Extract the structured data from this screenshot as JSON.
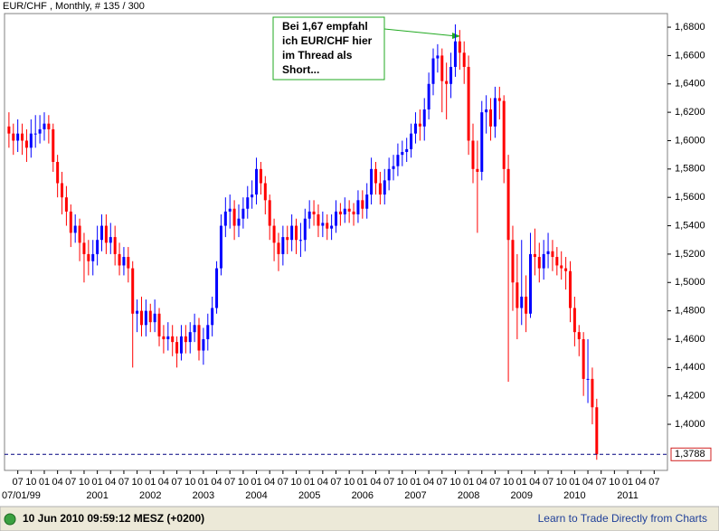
{
  "header": "EUR/CHF , Monthly, # 135 / 300",
  "status_time": "10 Jun 2010 09:59:12  MESZ (+0200)",
  "status_link": "Learn to Trade Directly from Charts",
  "chart_data": {
    "type": "candlestick",
    "annotation": [
      "Bei 1,67 empfahl",
      "ich EUR/CHF hier",
      "im Thread als",
      "Short..."
    ],
    "up_color": "#0000ff",
    "down_color": "#ff0000",
    "xlim": [
      "1999-04",
      "2011-10"
    ],
    "ylim": [
      1.3675,
      1.6896
    ],
    "yticks": [
      {
        "value": 1.4,
        "label": "1,4000"
      },
      {
        "value": 1.42,
        "label": "1,4200"
      },
      {
        "value": 1.44,
        "label": "1,4400"
      },
      {
        "value": 1.46,
        "label": "1,4600"
      },
      {
        "value": 1.48,
        "label": "1,4800"
      },
      {
        "value": 1.5,
        "label": "1,5000"
      },
      {
        "value": 1.52,
        "label": "1,5200"
      },
      {
        "value": 1.54,
        "label": "1,5400"
      },
      {
        "value": 1.56,
        "label": "1,5600"
      },
      {
        "value": 1.58,
        "label": "1,5800"
      },
      {
        "value": 1.6,
        "label": "1,6000"
      },
      {
        "value": 1.62,
        "label": "1,6200"
      },
      {
        "value": 1.64,
        "label": "1,6400"
      },
      {
        "value": 1.66,
        "label": "1,6600"
      },
      {
        "value": 1.68,
        "label": "1,6800"
      }
    ],
    "current_price": {
      "value": 1.3788,
      "label": "1,3788"
    },
    "start_label": "07/01/99",
    "xticks": [
      {
        "value": "1999-07",
        "label": "07"
      },
      {
        "value": "1999-10",
        "label": "10"
      },
      {
        "value": "2000-01",
        "label": "01"
      },
      {
        "value": "2000-04",
        "label": "04"
      },
      {
        "value": "2000-07",
        "label": "07"
      },
      {
        "value": "2000-10",
        "label": "10"
      },
      {
        "value": "2001-01",
        "label": "01"
      },
      {
        "value": "2001-04",
        "label": "04"
      },
      {
        "value": "2001-07",
        "label": "07"
      },
      {
        "value": "2001-10",
        "label": "10"
      },
      {
        "value": "2002-01",
        "label": "01"
      },
      {
        "value": "2002-04",
        "label": "04"
      },
      {
        "value": "2002-07",
        "label": "07"
      },
      {
        "value": "2002-10",
        "label": "10"
      },
      {
        "value": "2003-01",
        "label": "01"
      },
      {
        "value": "2003-04",
        "label": "04"
      },
      {
        "value": "2003-07",
        "label": "07"
      },
      {
        "value": "2003-10",
        "label": "10"
      },
      {
        "value": "2004-01",
        "label": "01"
      },
      {
        "value": "2004-04",
        "label": "04"
      },
      {
        "value": "2004-07",
        "label": "07"
      },
      {
        "value": "2004-10",
        "label": "10"
      },
      {
        "value": "2005-01",
        "label": "01"
      },
      {
        "value": "2005-04",
        "label": "04"
      },
      {
        "value": "2005-07",
        "label": "07"
      },
      {
        "value": "2005-10",
        "label": "10"
      },
      {
        "value": "2006-01",
        "label": "01"
      },
      {
        "value": "2006-04",
        "label": "04"
      },
      {
        "value": "2006-07",
        "label": "07"
      },
      {
        "value": "2006-10",
        "label": "10"
      },
      {
        "value": "2007-01",
        "label": "01"
      },
      {
        "value": "2007-04",
        "label": "04"
      },
      {
        "value": "2007-07",
        "label": "07"
      },
      {
        "value": "2007-10",
        "label": "10"
      },
      {
        "value": "2008-01",
        "label": "01"
      },
      {
        "value": "2008-04",
        "label": "04"
      },
      {
        "value": "2008-07",
        "label": "07"
      },
      {
        "value": "2008-10",
        "label": "10"
      },
      {
        "value": "2009-01",
        "label": "01"
      },
      {
        "value": "2009-04",
        "label": "04"
      },
      {
        "value": "2009-07",
        "label": "07"
      },
      {
        "value": "2009-10",
        "label": "10"
      },
      {
        "value": "2010-01",
        "label": "01"
      },
      {
        "value": "2010-04",
        "label": "04"
      },
      {
        "value": "2010-07",
        "label": "07"
      },
      {
        "value": "2010-10",
        "label": "10"
      },
      {
        "value": "2011-01",
        "label": "01"
      },
      {
        "value": "2011-04",
        "label": "04"
      },
      {
        "value": "2011-07",
        "label": "07"
      }
    ],
    "year_labels": [
      {
        "value": "2001-01",
        "label": "2001"
      },
      {
        "value": "2002-01",
        "label": "2002"
      },
      {
        "value": "2003-01",
        "label": "2003"
      },
      {
        "value": "2004-01",
        "label": "2004"
      },
      {
        "value": "2005-01",
        "label": "2005"
      },
      {
        "value": "2006-01",
        "label": "2006"
      },
      {
        "value": "2007-01",
        "label": "2007"
      },
      {
        "value": "2008-01",
        "label": "2008"
      },
      {
        "value": "2009-01",
        "label": "2009"
      },
      {
        "value": "2010-01",
        "label": "2010"
      },
      {
        "value": "2011-01",
        "label": "2011"
      }
    ],
    "x": [
      "1999-05",
      "1999-06",
      "1999-07",
      "1999-08",
      "1999-09",
      "1999-10",
      "1999-11",
      "1999-12",
      "2000-01",
      "2000-02",
      "2000-03",
      "2000-04",
      "2000-05",
      "2000-06",
      "2000-07",
      "2000-08",
      "2000-09",
      "2000-10",
      "2000-11",
      "2000-12",
      "2001-01",
      "2001-02",
      "2001-03",
      "2001-04",
      "2001-05",
      "2001-06",
      "2001-07",
      "2001-08",
      "2001-09",
      "2001-10",
      "2001-11",
      "2001-12",
      "2002-01",
      "2002-02",
      "2002-03",
      "2002-04",
      "2002-05",
      "2002-06",
      "2002-07",
      "2002-08",
      "2002-09",
      "2002-10",
      "2002-11",
      "2002-12",
      "2003-01",
      "2003-02",
      "2003-03",
      "2003-04",
      "2003-05",
      "2003-06",
      "2003-07",
      "2003-08",
      "2003-09",
      "2003-10",
      "2003-11",
      "2003-12",
      "2004-01",
      "2004-02",
      "2004-03",
      "2004-04",
      "2004-05",
      "2004-06",
      "2004-07",
      "2004-08",
      "2004-09",
      "2004-10",
      "2004-11",
      "2004-12",
      "2005-01",
      "2005-02",
      "2005-03",
      "2005-04",
      "2005-05",
      "2005-06",
      "2005-07",
      "2005-08",
      "2005-09",
      "2005-10",
      "2005-11",
      "2005-12",
      "2006-01",
      "2006-02",
      "2006-03",
      "2006-04",
      "2006-05",
      "2006-06",
      "2006-07",
      "2006-08",
      "2006-09",
      "2006-10",
      "2006-11",
      "2006-12",
      "2007-01",
      "2007-02",
      "2007-03",
      "2007-04",
      "2007-05",
      "2007-06",
      "2007-07",
      "2007-08",
      "2007-09",
      "2007-10",
      "2007-11",
      "2007-12",
      "2008-01",
      "2008-02",
      "2008-03",
      "2008-04",
      "2008-05",
      "2008-06",
      "2008-07",
      "2008-08",
      "2008-09",
      "2008-10",
      "2008-11",
      "2008-12",
      "2009-01",
      "2009-02",
      "2009-03",
      "2009-04",
      "2009-05",
      "2009-06",
      "2009-07",
      "2009-08",
      "2009-09",
      "2009-10",
      "2009-11",
      "2009-12",
      "2010-01",
      "2010-02",
      "2010-03",
      "2010-04",
      "2010-05",
      "2010-06"
    ],
    "open": [
      1.61,
      1.605,
      1.6,
      1.605,
      1.6,
      1.595,
      1.605,
      1.605,
      1.608,
      1.612,
      1.608,
      1.585,
      1.57,
      1.56,
      1.55,
      1.535,
      1.54,
      1.528,
      1.52,
      1.515,
      1.52,
      1.53,
      1.54,
      1.528,
      1.532,
      1.52,
      1.512,
      1.518,
      1.51,
      1.478,
      1.48,
      1.47,
      1.48,
      1.472,
      1.478,
      1.462,
      1.46,
      1.462,
      1.458,
      1.45,
      1.462,
      1.458,
      1.465,
      1.47,
      1.452,
      1.46,
      1.47,
      1.482,
      1.51,
      1.54,
      1.55,
      1.552,
      1.54,
      1.545,
      1.552,
      1.56,
      1.562,
      1.58,
      1.57,
      1.558,
      1.54,
      1.528,
      1.52,
      1.532,
      1.53,
      1.54,
      1.53,
      1.53,
      1.545,
      1.55,
      1.548,
      1.54,
      1.542,
      1.538,
      1.54,
      1.55,
      1.548,
      1.552,
      1.55,
      1.548,
      1.558,
      1.552,
      1.562,
      1.58,
      1.57,
      1.562,
      1.572,
      1.58,
      1.582,
      1.59,
      1.592,
      1.594,
      1.605,
      1.612,
      1.61,
      1.622,
      1.64,
      1.658,
      1.66,
      1.642,
      1.64,
      1.652,
      1.67,
      1.662,
      1.652,
      1.6,
      1.58,
      1.578,
      1.62,
      1.622,
      1.61,
      1.63,
      1.628,
      1.58,
      1.53,
      1.5,
      1.482,
      1.49,
      1.478,
      1.52,
      1.518,
      1.51,
      1.52,
      1.522,
      1.518,
      1.512,
      1.51,
      1.508,
      1.482,
      1.465,
      1.46,
      1.432,
      1.432,
      1.412
    ],
    "high": [
      1.62,
      1.612,
      1.615,
      1.612,
      1.608,
      1.615,
      1.618,
      1.618,
      1.62,
      1.618,
      1.612,
      1.59,
      1.578,
      1.568,
      1.555,
      1.548,
      1.545,
      1.535,
      1.53,
      1.53,
      1.54,
      1.548,
      1.548,
      1.542,
      1.54,
      1.528,
      1.525,
      1.525,
      1.515,
      1.488,
      1.49,
      1.488,
      1.485,
      1.488,
      1.482,
      1.47,
      1.472,
      1.47,
      1.462,
      1.47,
      1.47,
      1.472,
      1.478,
      1.475,
      1.468,
      1.478,
      1.49,
      1.515,
      1.548,
      1.56,
      1.562,
      1.558,
      1.555,
      1.56,
      1.568,
      1.572,
      1.588,
      1.585,
      1.575,
      1.562,
      1.545,
      1.535,
      1.54,
      1.54,
      1.548,
      1.545,
      1.542,
      1.552,
      1.558,
      1.558,
      1.555,
      1.55,
      1.548,
      1.548,
      1.558,
      1.556,
      1.56,
      1.558,
      1.556,
      1.565,
      1.565,
      1.57,
      1.588,
      1.585,
      1.578,
      1.58,
      1.588,
      1.59,
      1.598,
      1.6,
      1.602,
      1.612,
      1.62,
      1.622,
      1.63,
      1.648,
      1.665,
      1.668,
      1.665,
      1.655,
      1.662,
      1.682,
      1.678,
      1.67,
      1.66,
      1.612,
      1.6,
      1.628,
      1.632,
      1.63,
      1.638,
      1.638,
      1.632,
      1.59,
      1.54,
      1.52,
      1.53,
      1.505,
      1.535,
      1.538,
      1.528,
      1.53,
      1.535,
      1.53,
      1.525,
      1.522,
      1.518,
      1.515,
      1.49,
      1.47,
      1.465,
      1.46,
      1.44,
      1.418
    ],
    "low": [
      1.595,
      1.59,
      1.592,
      1.59,
      1.585,
      1.588,
      1.595,
      1.598,
      1.6,
      1.598,
      1.578,
      1.56,
      1.548,
      1.54,
      1.525,
      1.528,
      1.515,
      1.5,
      1.505,
      1.505,
      1.512,
      1.522,
      1.52,
      1.52,
      1.512,
      1.505,
      1.505,
      1.5,
      1.44,
      1.465,
      1.462,
      1.462,
      1.465,
      1.465,
      1.455,
      1.45,
      1.452,
      1.448,
      1.44,
      1.445,
      1.45,
      1.45,
      1.458,
      1.445,
      1.442,
      1.452,
      1.462,
      1.478,
      1.505,
      1.532,
      1.538,
      1.53,
      1.532,
      1.538,
      1.545,
      1.552,
      1.555,
      1.562,
      1.548,
      1.53,
      1.515,
      1.508,
      1.512,
      1.52,
      1.522,
      1.52,
      1.518,
      1.522,
      1.538,
      1.54,
      1.532,
      1.532,
      1.53,
      1.53,
      1.535,
      1.54,
      1.542,
      1.542,
      1.54,
      1.542,
      1.545,
      1.545,
      1.555,
      1.562,
      1.555,
      1.555,
      1.565,
      1.572,
      1.575,
      1.582,
      1.585,
      1.588,
      1.598,
      1.6,
      1.6,
      1.615,
      1.632,
      1.648,
      1.62,
      1.615,
      1.63,
      1.645,
      1.65,
      1.64,
      1.59,
      1.57,
      1.535,
      1.572,
      1.605,
      1.6,
      1.602,
      1.615,
      1.57,
      1.43,
      1.48,
      1.46,
      1.47,
      1.465,
      1.475,
      1.505,
      1.5,
      1.502,
      1.51,
      1.508,
      1.505,
      1.502,
      1.495,
      1.472,
      1.455,
      1.448,
      1.42,
      1.415,
      1.4,
      1.375
    ],
    "close": [
      1.605,
      1.6,
      1.605,
      1.6,
      1.595,
      1.605,
      1.605,
      1.608,
      1.612,
      1.608,
      1.585,
      1.57,
      1.56,
      1.55,
      1.535,
      1.54,
      1.528,
      1.52,
      1.515,
      1.52,
      1.53,
      1.54,
      1.528,
      1.532,
      1.52,
      1.512,
      1.518,
      1.51,
      1.478,
      1.48,
      1.47,
      1.48,
      1.472,
      1.478,
      1.462,
      1.46,
      1.462,
      1.458,
      1.45,
      1.462,
      1.458,
      1.465,
      1.47,
      1.452,
      1.46,
      1.47,
      1.482,
      1.51,
      1.54,
      1.55,
      1.552,
      1.54,
      1.545,
      1.552,
      1.56,
      1.562,
      1.58,
      1.57,
      1.558,
      1.54,
      1.528,
      1.52,
      1.532,
      1.53,
      1.54,
      1.53,
      1.53,
      1.545,
      1.55,
      1.548,
      1.54,
      1.542,
      1.538,
      1.54,
      1.55,
      1.548,
      1.552,
      1.55,
      1.548,
      1.558,
      1.552,
      1.562,
      1.58,
      1.57,
      1.562,
      1.572,
      1.58,
      1.582,
      1.59,
      1.592,
      1.594,
      1.605,
      1.612,
      1.61,
      1.622,
      1.64,
      1.658,
      1.66,
      1.642,
      1.64,
      1.652,
      1.67,
      1.662,
      1.652,
      1.6,
      1.58,
      1.578,
      1.62,
      1.622,
      1.61,
      1.63,
      1.628,
      1.58,
      1.53,
      1.5,
      1.482,
      1.49,
      1.478,
      1.52,
      1.518,
      1.51,
      1.52,
      1.522,
      1.518,
      1.512,
      1.51,
      1.508,
      1.482,
      1.465,
      1.46,
      1.432,
      1.432,
      1.412,
      1.3788
    ]
  }
}
